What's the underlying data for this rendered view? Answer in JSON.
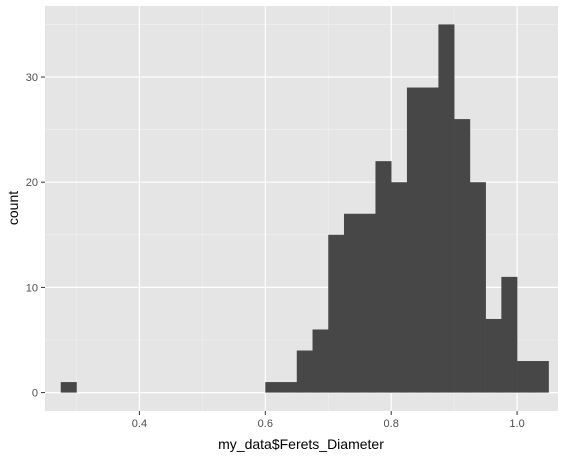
{
  "chart_data": {
    "type": "bar",
    "subtype": "histogram",
    "title": "",
    "xlabel": "my_data$Ferets_Diameter",
    "ylabel": "count",
    "xlim": [
      0.25,
      1.065
    ],
    "ylim": [
      -1.75,
      36.75
    ],
    "x_ticks": [
      0.4,
      0.6,
      0.8,
      1.0
    ],
    "x_tick_labels": [
      "0.4",
      "0.6",
      "0.8",
      "1.0"
    ],
    "y_ticks": [
      0,
      10,
      20,
      30
    ],
    "y_tick_labels": [
      "0",
      "10",
      "20",
      "30"
    ],
    "grid": true,
    "bin_width": 0.025,
    "bins": [
      {
        "x0": 0.275,
        "x1": 0.3,
        "count": 1
      },
      {
        "x0": 0.3,
        "x1": 0.325,
        "count": 0
      },
      {
        "x0": 0.325,
        "x1": 0.35,
        "count": 0
      },
      {
        "x0": 0.35,
        "x1": 0.375,
        "count": 0
      },
      {
        "x0": 0.375,
        "x1": 0.4,
        "count": 0
      },
      {
        "x0": 0.4,
        "x1": 0.425,
        "count": 0
      },
      {
        "x0": 0.425,
        "x1": 0.45,
        "count": 0
      },
      {
        "x0": 0.45,
        "x1": 0.475,
        "count": 0
      },
      {
        "x0": 0.475,
        "x1": 0.5,
        "count": 0
      },
      {
        "x0": 0.5,
        "x1": 0.525,
        "count": 0
      },
      {
        "x0": 0.525,
        "x1": 0.55,
        "count": 0
      },
      {
        "x0": 0.55,
        "x1": 0.575,
        "count": 0
      },
      {
        "x0": 0.575,
        "x1": 0.6,
        "count": 0
      },
      {
        "x0": 0.6,
        "x1": 0.625,
        "count": 1
      },
      {
        "x0": 0.625,
        "x1": 0.65,
        "count": 1
      },
      {
        "x0": 0.65,
        "x1": 0.675,
        "count": 4
      },
      {
        "x0": 0.675,
        "x1": 0.7,
        "count": 6
      },
      {
        "x0": 0.7,
        "x1": 0.725,
        "count": 15
      },
      {
        "x0": 0.725,
        "x1": 0.75,
        "count": 17
      },
      {
        "x0": 0.75,
        "x1": 0.775,
        "count": 17
      },
      {
        "x0": 0.775,
        "x1": 0.8,
        "count": 22
      },
      {
        "x0": 0.8,
        "x1": 0.825,
        "count": 20
      },
      {
        "x0": 0.825,
        "x1": 0.85,
        "count": 29
      },
      {
        "x0": 0.85,
        "x1": 0.875,
        "count": 29
      },
      {
        "x0": 0.875,
        "x1": 0.9,
        "count": 35
      },
      {
        "x0": 0.9,
        "x1": 0.925,
        "count": 26
      },
      {
        "x0": 0.925,
        "x1": 0.95,
        "count": 20
      },
      {
        "x0": 0.95,
        "x1": 0.975,
        "count": 7
      },
      {
        "x0": 0.975,
        "x1": 1.0,
        "count": 11
      },
      {
        "x0": 1.0,
        "x1": 1.025,
        "count": 3
      },
      {
        "x0": 1.025,
        "x1": 1.05,
        "count": 3
      }
    ],
    "colors": {
      "bar_fill": "#474747",
      "panel_background": "#e5e5e5",
      "grid_major": "#ffffff",
      "grid_minor": "#f2f2f2",
      "tick_text": "#4d4d4d",
      "tick_mark": "#333333",
      "axis_title": "#000000"
    }
  }
}
